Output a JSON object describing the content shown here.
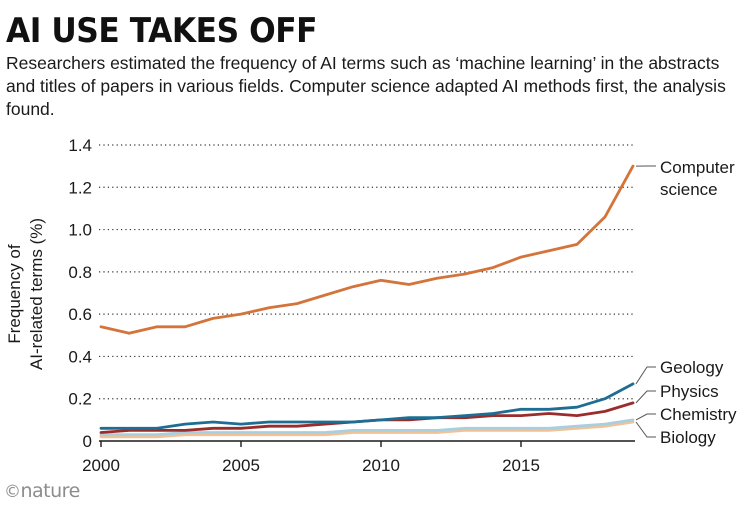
{
  "header": {
    "title": "AI USE TAKES OFF",
    "subtitle": "Researchers estimated the frequency of AI terms such as ‘machine learning’ in the abstracts and titles of papers in various fields. Computer science adapted AI methods first, the analysis found."
  },
  "footer": {
    "logo_symbol": "©",
    "logo_text": "nature"
  },
  "chart_data": {
    "type": "line",
    "title": "",
    "xlabel": "",
    "ylabel_lines": [
      "Frequency of",
      "AI-related terms (%)"
    ],
    "ylim": [
      0,
      1.4
    ],
    "xlim": [
      2000,
      2019
    ],
    "y_ticks": [
      0,
      0.2,
      0.4,
      0.6,
      0.8,
      1.0,
      1.2,
      1.4
    ],
    "y_tick_labels": [
      "0",
      "0.2",
      "0.4",
      "0.6",
      "0.8",
      "1.0",
      "1.2",
      "1.4"
    ],
    "x_ticks": [
      2000,
      2005,
      2010,
      2015
    ],
    "x_tick_labels": [
      "2000",
      "2005",
      "2010",
      "2015"
    ],
    "grid": "horizontal dotted",
    "legend": "direct labels at right end of lines",
    "x": [
      2000,
      2001,
      2002,
      2003,
      2004,
      2005,
      2006,
      2007,
      2008,
      2009,
      2010,
      2011,
      2012,
      2013,
      2014,
      2015,
      2016,
      2017,
      2018,
      2019
    ],
    "series": [
      {
        "name": "Computer science",
        "label_lines": [
          "Computer",
          "science"
        ],
        "color": "#d4733a",
        "values": [
          0.54,
          0.51,
          0.54,
          0.54,
          0.58,
          0.6,
          0.63,
          0.65,
          0.69,
          0.73,
          0.76,
          0.74,
          0.77,
          0.79,
          0.82,
          0.87,
          0.9,
          0.93,
          1.06,
          1.3
        ]
      },
      {
        "name": "Geology",
        "label_lines": [
          "Geology"
        ],
        "color": "#1d6e92",
        "values": [
          0.06,
          0.06,
          0.06,
          0.08,
          0.09,
          0.08,
          0.09,
          0.09,
          0.09,
          0.09,
          0.1,
          0.11,
          0.11,
          0.12,
          0.13,
          0.15,
          0.15,
          0.16,
          0.2,
          0.27
        ]
      },
      {
        "name": "Physics",
        "label_lines": [
          "Physics"
        ],
        "color": "#9b2c2c",
        "values": [
          0.04,
          0.05,
          0.05,
          0.05,
          0.06,
          0.06,
          0.07,
          0.07,
          0.08,
          0.09,
          0.1,
          0.1,
          0.11,
          0.11,
          0.12,
          0.12,
          0.13,
          0.12,
          0.14,
          0.18
        ]
      },
      {
        "name": "Chemistry",
        "label_lines": [
          "Chemistry"
        ],
        "color": "#a9cfdf",
        "values": [
          0.03,
          0.03,
          0.03,
          0.04,
          0.04,
          0.04,
          0.04,
          0.04,
          0.04,
          0.05,
          0.05,
          0.05,
          0.05,
          0.06,
          0.06,
          0.06,
          0.06,
          0.07,
          0.08,
          0.1
        ]
      },
      {
        "name": "Biology",
        "label_lines": [
          "Biology"
        ],
        "color": "#f2c196",
        "values": [
          0.02,
          0.02,
          0.02,
          0.03,
          0.03,
          0.03,
          0.03,
          0.03,
          0.03,
          0.04,
          0.04,
          0.04,
          0.04,
          0.05,
          0.05,
          0.05,
          0.05,
          0.06,
          0.07,
          0.09
        ]
      }
    ]
  }
}
